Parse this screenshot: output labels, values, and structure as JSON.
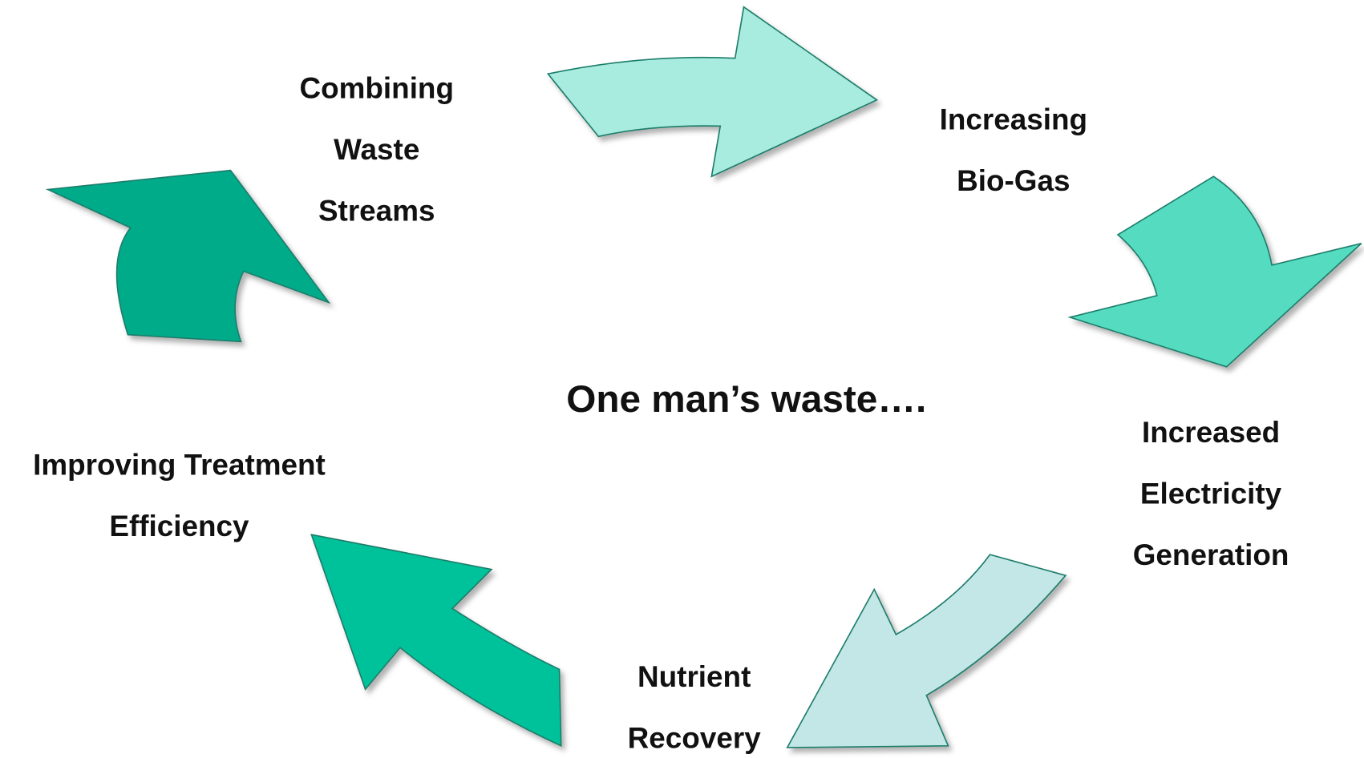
{
  "title": "One man’s waste….",
  "nodes": [
    {
      "lines": [
        "Combining",
        "Waste",
        "Streams"
      ]
    },
    {
      "lines": [
        "Increasing",
        "Bio-Gas"
      ]
    },
    {
      "lines": [
        "Increased",
        "Electricity",
        "Generation"
      ]
    },
    {
      "lines": [
        "Nutrient",
        "Recovery"
      ]
    },
    {
      "lines": [
        "Improving Treatment",
        "Efficiency"
      ]
    }
  ]
}
